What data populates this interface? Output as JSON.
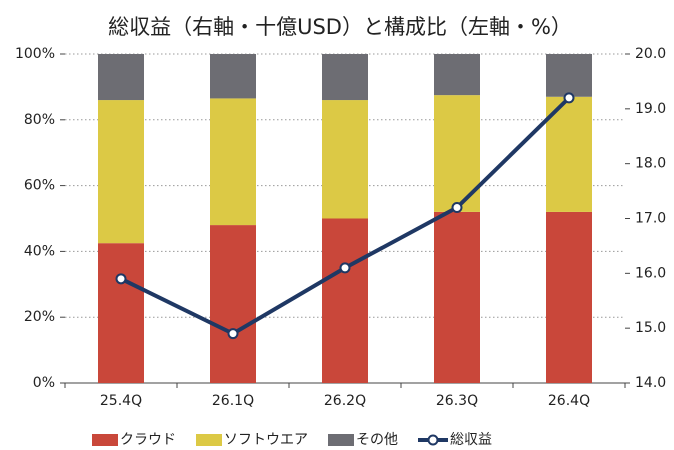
{
  "chart_data": {
    "type": "bar",
    "stacked": true,
    "title": "総収益（右軸・十億USD）と構成比（左軸・%）",
    "categories": [
      "25.4Q",
      "26.1Q",
      "26.2Q",
      "26.3Q",
      "26.4Q"
    ],
    "series": [
      {
        "name": "クラウド",
        "color": "#c9473a",
        "values": [
          42.5,
          48,
          50,
          52,
          52
        ]
      },
      {
        "name": "ソフトウエア",
        "color": "#dcc945",
        "values": [
          43.5,
          38.5,
          36,
          35.5,
          35
        ]
      },
      {
        "name": "その他",
        "color": "#6d6d73",
        "values": [
          14,
          13.5,
          14,
          12.5,
          13
        ]
      },
      {
        "name": "総収益",
        "color": "#1f3864",
        "type": "line",
        "axis": "y2",
        "values": [
          15.9,
          14.9,
          16.1,
          17.2,
          19.2
        ]
      }
    ],
    "ylim": [
      0,
      100
    ],
    "yticks": [
      {
        "value": 0,
        "label": "0%"
      },
      {
        "value": 20,
        "label": "20%"
      },
      {
        "value": 40,
        "label": "40%"
      },
      {
        "value": 60,
        "label": "60%"
      },
      {
        "value": 80,
        "label": "80%"
      },
      {
        "value": 100,
        "label": "100%"
      }
    ],
    "y2lim": [
      14,
      20
    ],
    "y2ticks": [
      {
        "value": 14,
        "label": "14.0"
      },
      {
        "value": 15,
        "label": "15.0"
      },
      {
        "value": 16,
        "label": "16.0"
      },
      {
        "value": 17,
        "label": "17.0"
      },
      {
        "value": 18,
        "label": "18.0"
      },
      {
        "value": 19,
        "label": "19.0"
      },
      {
        "value": 20,
        "label": "20.0"
      }
    ],
    "grid": true,
    "legend": "bottom"
  }
}
